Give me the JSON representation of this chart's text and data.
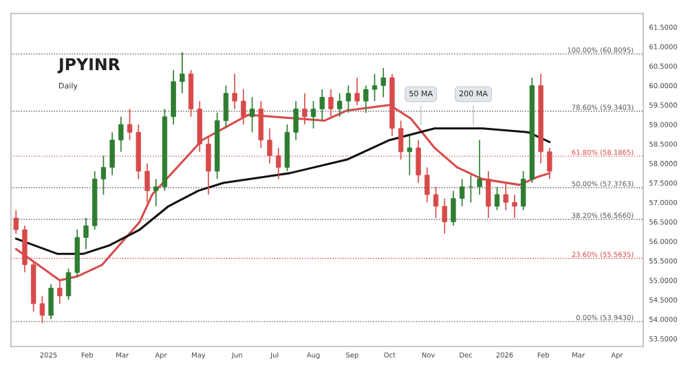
{
  "chart_data": {
    "type": "candlestick",
    "title": "JPYINR",
    "subtitle": "Daily",
    "x": [
      "2024-12-06",
      "2024-12-13",
      "2024-12-20",
      "2024-12-27",
      "2025-01-03",
      "2025-01-10",
      "2025-01-17",
      "2025-01-24",
      "2025-01-31",
      "2025-02-07",
      "2025-02-14",
      "2025-02-21",
      "2025-02-28",
      "2025-03-07",
      "2025-03-14",
      "2025-03-21",
      "2025-03-28",
      "2025-04-04",
      "2025-04-11",
      "2025-04-18",
      "2025-04-25",
      "2025-05-02",
      "2025-05-09",
      "2025-05-16",
      "2025-05-23",
      "2025-05-30",
      "2025-06-06",
      "2025-06-13",
      "2025-06-20",
      "2025-06-27",
      "2025-07-04",
      "2025-07-11",
      "2025-07-18",
      "2025-07-25",
      "2025-08-01",
      "2025-08-08",
      "2025-08-15",
      "2025-08-22",
      "2025-08-29",
      "2025-09-05",
      "2025-09-12",
      "2025-09-19",
      "2025-09-26",
      "2025-10-03",
      "2025-10-10",
      "2025-10-17",
      "2025-10-24",
      "2025-10-31",
      "2025-11-07",
      "2025-11-14",
      "2025-11-21",
      "2025-11-28",
      "2025-12-05",
      "2025-12-12",
      "2025-12-19",
      "2025-12-26",
      "2026-01-02",
      "2026-01-09",
      "2026-01-16",
      "2026-01-23",
      "2026-01-30",
      "2026-02-06"
    ],
    "ohlc": [
      [
        56.6,
        56.8,
        56.2,
        56.3
      ],
      [
        56.3,
        56.4,
        55.2,
        55.4
      ],
      [
        55.4,
        55.5,
        54.2,
        54.4
      ],
      [
        54.4,
        54.6,
        53.9,
        54.1
      ],
      [
        54.1,
        54.9,
        54.0,
        54.8
      ],
      [
        54.8,
        55.0,
        54.4,
        54.6
      ],
      [
        54.6,
        55.3,
        54.5,
        55.2
      ],
      [
        55.2,
        56.3,
        55.1,
        56.1
      ],
      [
        56.1,
        56.6,
        55.8,
        56.4
      ],
      [
        56.4,
        57.8,
        56.3,
        57.6
      ],
      [
        57.6,
        58.2,
        57.2,
        57.9
      ],
      [
        57.9,
        58.8,
        57.7,
        58.6
      ],
      [
        58.6,
        59.2,
        58.3,
        59.0
      ],
      [
        59.0,
        59.4,
        58.6,
        58.8
      ],
      [
        58.8,
        59.0,
        57.6,
        57.8
      ],
      [
        57.8,
        58.0,
        57.0,
        57.3
      ],
      [
        57.3,
        57.6,
        56.9,
        57.4
      ],
      [
        57.4,
        59.4,
        57.3,
        59.2
      ],
      [
        59.2,
        60.4,
        59.0,
        60.1
      ],
      [
        60.1,
        60.85,
        59.8,
        60.3
      ],
      [
        60.3,
        60.4,
        59.2,
        59.4
      ],
      [
        59.4,
        59.6,
        58.3,
        58.5
      ],
      [
        58.5,
        58.7,
        57.2,
        57.8
      ],
      [
        57.8,
        59.3,
        57.6,
        59.1
      ],
      [
        59.1,
        60.0,
        58.9,
        59.8
      ],
      [
        59.8,
        60.3,
        59.4,
        59.6
      ],
      [
        59.6,
        59.9,
        59.0,
        59.2
      ],
      [
        59.2,
        59.7,
        58.8,
        59.4
      ],
      [
        59.4,
        59.6,
        58.4,
        58.6
      ],
      [
        58.6,
        58.9,
        58.0,
        58.2
      ],
      [
        58.2,
        58.4,
        57.6,
        57.9
      ],
      [
        57.9,
        59.0,
        57.8,
        58.8
      ],
      [
        58.8,
        59.6,
        58.6,
        59.4
      ],
      [
        59.4,
        59.8,
        59.0,
        59.2
      ],
      [
        59.2,
        59.6,
        58.9,
        59.4
      ],
      [
        59.4,
        59.9,
        59.1,
        59.7
      ],
      [
        59.7,
        59.9,
        59.2,
        59.4
      ],
      [
        59.4,
        59.8,
        59.2,
        59.6
      ],
      [
        59.6,
        60.0,
        59.3,
        59.8
      ],
      [
        59.8,
        60.2,
        59.5,
        59.6
      ],
      [
        59.6,
        60.0,
        59.3,
        59.9
      ],
      [
        59.9,
        60.3,
        59.6,
        60.0
      ],
      [
        60.0,
        60.45,
        59.7,
        60.2
      ],
      [
        60.2,
        60.3,
        58.7,
        58.9
      ],
      [
        58.9,
        59.1,
        58.1,
        58.3
      ],
      [
        58.3,
        58.7,
        57.7,
        58.4
      ],
      [
        58.4,
        58.6,
        57.5,
        57.7
      ],
      [
        57.7,
        57.9,
        57.0,
        57.2
      ],
      [
        57.2,
        57.4,
        56.6,
        56.9
      ],
      [
        56.9,
        57.1,
        56.2,
        56.5
      ],
      [
        56.5,
        57.3,
        56.4,
        57.1
      ],
      [
        57.1,
        57.6,
        56.9,
        57.4
      ],
      [
        57.4,
        57.7,
        57.0,
        57.4
      ],
      [
        57.4,
        58.6,
        57.2,
        57.6
      ],
      [
        57.6,
        57.8,
        56.6,
        56.9
      ],
      [
        56.9,
        57.4,
        56.8,
        57.2
      ],
      [
        57.2,
        57.5,
        56.8,
        57.0
      ],
      [
        57.0,
        57.2,
        56.6,
        56.9
      ],
      [
        56.9,
        57.8,
        56.8,
        57.6
      ],
      [
        57.6,
        60.2,
        57.5,
        60.0
      ],
      [
        60.0,
        60.3,
        58.0,
        58.3
      ],
      [
        58.3,
        58.4,
        57.6,
        57.8
      ]
    ],
    "series": [
      {
        "type": "line",
        "color": "#d84a4a",
        "x": [
          "2024-12-06",
          "2025-01-10",
          "2025-01-24",
          "2025-02-13",
          "2025-03-15",
          "2025-03-25",
          "2025-05-04",
          "2025-06-10",
          "2025-08-10",
          "2025-08-28",
          "2025-10-01",
          "2025-10-18",
          "2025-11-06",
          "2025-11-24",
          "2025-12-14",
          "2026-01-13",
          "2026-01-27",
          "2026-02-06"
        ],
        "values": [
          55.8,
          55.0,
          55.1,
          55.4,
          56.5,
          57.2,
          58.6,
          59.25,
          59.1,
          59.36,
          59.5,
          59.15,
          58.4,
          57.9,
          57.6,
          57.45,
          57.65,
          57.75
        ]
      },
      {
        "type": "line",
        "color": "#111111",
        "x": [
          "2024-12-06",
          "2025-01-08",
          "2025-01-29",
          "2025-02-19",
          "2025-03-15",
          "2025-04-07",
          "2025-05-01",
          "2025-05-21",
          "2025-07-13",
          "2025-08-28",
          "2025-10-01",
          "2025-11-06",
          "2025-12-14",
          "2026-01-20",
          "2026-02-06"
        ],
        "values": [
          56.07,
          55.68,
          55.68,
          55.9,
          56.3,
          56.9,
          57.3,
          57.5,
          57.75,
          58.1,
          58.6,
          58.9,
          58.9,
          58.8,
          58.55
        ]
      }
    ],
    "ref_lines": [
      {
        "axis": "y",
        "value": 60.8095,
        "label": "100.00% (60.8095)",
        "color": "#555555",
        "line_style": "dotted"
      },
      {
        "axis": "y",
        "value": 59.3403,
        "label": "78.60% (59.3403)",
        "color": "#555555",
        "line_style": "dotted"
      },
      {
        "axis": "y",
        "value": 58.1865,
        "label": "61.80% (58.1865)",
        "color": "#d84a4a",
        "line_style": "dotted"
      },
      {
        "axis": "y",
        "value": 57.3763,
        "label": "50.00% (57.3763)",
        "color": "#555555",
        "line_style": "dotted"
      },
      {
        "axis": "y",
        "value": 56.566,
        "label": "38.20% (56.5660)",
        "color": "#555555",
        "line_style": "dotted"
      },
      {
        "axis": "y",
        "value": 55.5635,
        "label": "23.60% (55.5635)",
        "color": "#d84a4a",
        "line_style": "dotted"
      },
      {
        "axis": "y",
        "value": 53.943,
        "label": "0.00% (53.9430)",
        "color": "#555555",
        "line_style": "dotted"
      }
    ],
    "annotations": [
      {
        "text": "50 MA",
        "x": "2025-10-26",
        "y": 58.9
      },
      {
        "text": "200 MA",
        "x": "2025-12-07",
        "y": 58.9
      }
    ],
    "xlim": [
      "2024-12-02",
      "2026-04-22"
    ],
    "xticks": [
      {
        "value": "2025-01-01",
        "label": "2025"
      },
      {
        "value": "2025-02-01",
        "label": "Feb"
      },
      {
        "value": "2025-03-01",
        "label": "Mar"
      },
      {
        "value": "2025-04-01",
        "label": "Apr"
      },
      {
        "value": "2025-05-01",
        "label": "May"
      },
      {
        "value": "2025-06-01",
        "label": "Jun"
      },
      {
        "value": "2025-07-01",
        "label": "Jul"
      },
      {
        "value": "2025-08-01",
        "label": "Aug"
      },
      {
        "value": "2025-09-01",
        "label": "Sep"
      },
      {
        "value": "2025-10-01",
        "label": "Oct"
      },
      {
        "value": "2025-11-01",
        "label": "Nov"
      },
      {
        "value": "2025-12-01",
        "label": "Dec"
      },
      {
        "value": "2026-01-01",
        "label": "2026"
      },
      {
        "value": "2026-02-01",
        "label": "Feb"
      },
      {
        "value": "2026-03-01",
        "label": "Mar"
      },
      {
        "value": "2026-04-01",
        "label": "Apr"
      }
    ],
    "ylim": [
      53.3,
      61.85
    ],
    "yticks": [
      {
        "value": 53.5,
        "label": "53.5000"
      },
      {
        "value": 54.0,
        "label": "54.0000"
      },
      {
        "value": 54.5,
        "label": "54.5000"
      },
      {
        "value": 55.0,
        "label": "55.0000"
      },
      {
        "value": 55.5,
        "label": "55.5000"
      },
      {
        "value": 56.0,
        "label": "56.0000"
      },
      {
        "value": 56.5,
        "label": "56.5000"
      },
      {
        "value": 57.0,
        "label": "57.0000"
      },
      {
        "value": 57.5,
        "label": "57.5000"
      },
      {
        "value": 58.0,
        "label": "58.0000"
      },
      {
        "value": 58.5,
        "label": "58.5000"
      },
      {
        "value": 59.0,
        "label": "59.0000"
      },
      {
        "value": 59.5,
        "label": "59.5000"
      },
      {
        "value": 60.0,
        "label": "60.0000"
      },
      {
        "value": 60.5,
        "label": "60.5000"
      },
      {
        "value": 61.0,
        "label": "61.0000"
      },
      {
        "value": 61.5,
        "label": "61.5000"
      }
    ],
    "grid": false,
    "legend": false
  }
}
